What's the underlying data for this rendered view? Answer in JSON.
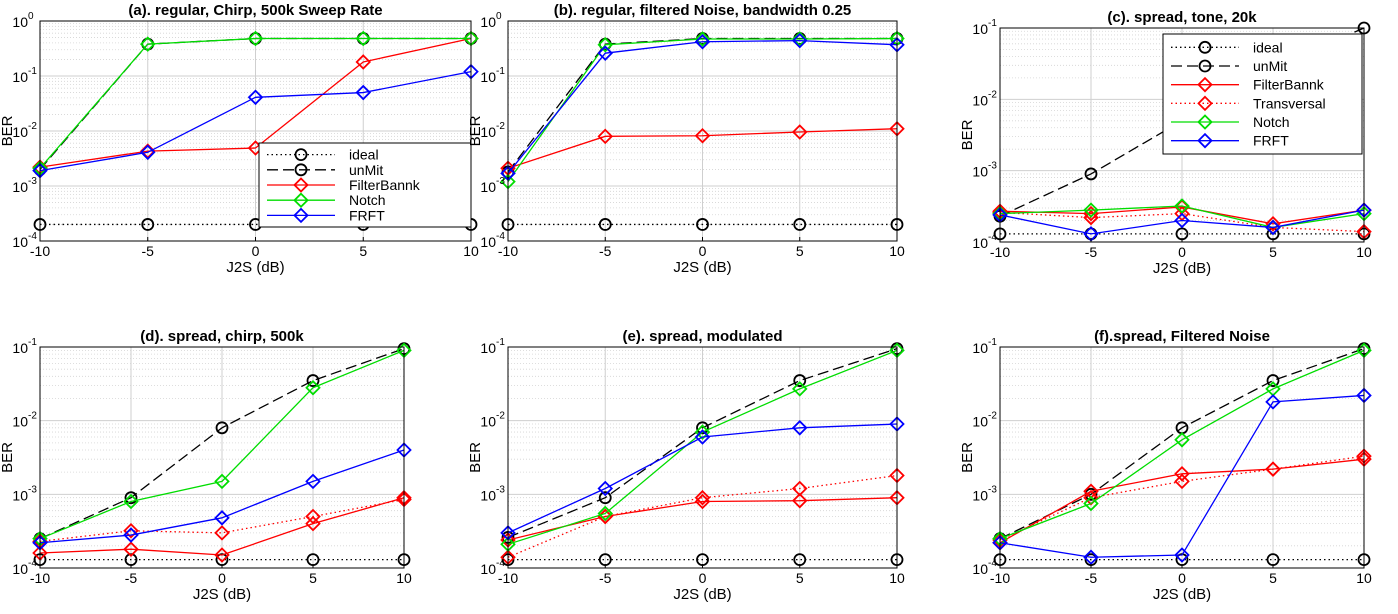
{
  "chart_data": [
    {
      "type": "line",
      "title": "(a). regular, Chirp, 500k Sweep Rate",
      "xlabel": "J2S (dB)",
      "ylabel": "BER",
      "yscale": "log",
      "x": [
        -10,
        -5,
        0,
        5,
        10
      ],
      "xlim": [
        -10,
        10
      ],
      "ylim": [
        0.0001,
        1
      ],
      "x_ticks": [
        "-10",
        "-5",
        "0",
        "5",
        "10"
      ],
      "y_ticks": [
        {
          "base": "10",
          "exp": "-4"
        },
        {
          "base": "10",
          "exp": "-3"
        },
        {
          "base": "10",
          "exp": "-2"
        },
        {
          "base": "10",
          "exp": "-1"
        },
        {
          "base": "10",
          "exp": "0"
        }
      ],
      "grid": true,
      "legend_position": "center-right",
      "series": [
        {
          "name": "ideal",
          "style": "ideal",
          "values": [
            0.0002,
            0.0002,
            0.0002,
            0.0002,
            0.0002
          ]
        },
        {
          "name": "unMit",
          "style": "unmit",
          "values": [
            0.002,
            0.38,
            0.48,
            0.48,
            0.48
          ]
        },
        {
          "name": "FilterBannk",
          "style": "filterbank",
          "values": [
            0.0022,
            0.0043,
            0.0049,
            0.18,
            0.48
          ]
        },
        {
          "name": "Notch",
          "style": "notch",
          "values": [
            0.0021,
            0.38,
            0.48,
            0.48,
            0.48
          ]
        },
        {
          "name": "FRFT",
          "style": "frft",
          "values": [
            0.0019,
            0.0041,
            0.041,
            0.05,
            0.12
          ]
        }
      ]
    },
    {
      "type": "line",
      "title": "(b). regular, filtered Noise, bandwidth 0.25",
      "xlabel": "J2S (dB)",
      "ylabel": "BER",
      "yscale": "log",
      "x": [
        -10,
        -5,
        0,
        5,
        10
      ],
      "xlim": [
        -10,
        10
      ],
      "ylim": [
        0.0001,
        1
      ],
      "x_ticks": [
        "-10",
        "-5",
        "0",
        "5",
        "10"
      ],
      "y_ticks": [
        {
          "base": "10",
          "exp": "-4"
        },
        {
          "base": "10",
          "exp": "-3"
        },
        {
          "base": "10",
          "exp": "-2"
        },
        {
          "base": "10",
          "exp": "-1"
        },
        {
          "base": "10",
          "exp": "0"
        }
      ],
      "grid": true,
      "series": [
        {
          "name": "ideal",
          "style": "ideal",
          "values": [
            0.0002,
            0.0002,
            0.0002,
            0.0002,
            0.0002
          ]
        },
        {
          "name": "unMit",
          "style": "unmit",
          "values": [
            0.0018,
            0.38,
            0.48,
            0.48,
            0.48
          ]
        },
        {
          "name": "FilterBannk",
          "style": "filterbank",
          "values": [
            0.0021,
            0.008,
            0.0082,
            0.0096,
            0.011
          ]
        },
        {
          "name": "Notch",
          "style": "notch",
          "values": [
            0.0012,
            0.37,
            0.47,
            0.47,
            0.48
          ]
        },
        {
          "name": "FRFT",
          "style": "frft",
          "values": [
            0.0017,
            0.26,
            0.42,
            0.44,
            0.37
          ]
        }
      ]
    },
    {
      "type": "line",
      "title": "(c). spread, tone, 20k",
      "xlabel": "J2S (dB)",
      "ylabel": "BER",
      "yscale": "log",
      "x": [
        -10,
        -5,
        0,
        5,
        10
      ],
      "xlim": [
        -10,
        10
      ],
      "ylim": [
        0.0001,
        0.1
      ],
      "x_ticks": [
        "-10",
        "-5",
        "0",
        "5",
        "10"
      ],
      "y_ticks": [
        {
          "base": "10",
          "exp": "-4"
        },
        {
          "base": "10",
          "exp": "-3"
        },
        {
          "base": "10",
          "exp": "-2"
        },
        {
          "base": "10",
          "exp": "-1"
        }
      ],
      "grid": true,
      "legend_position": "top-right",
      "series": [
        {
          "name": "ideal",
          "style": "ideal",
          "values": [
            0.00013,
            0.00013,
            0.00013,
            0.00013,
            0.00013
          ]
        },
        {
          "name": "unMit",
          "style": "unmit",
          "values": [
            0.00023,
            0.0009,
            0.005,
            0.028,
            0.1
          ]
        },
        {
          "name": "FilterBannk",
          "style": "filterbank",
          "values": [
            0.00027,
            0.00025,
            0.00031,
            0.00018,
            0.00028
          ]
        },
        {
          "name": "Transversal",
          "style": "transversal",
          "values": [
            0.00026,
            0.00022,
            0.00025,
            0.00016,
            0.00014
          ]
        },
        {
          "name": "Notch",
          "style": "notch",
          "values": [
            0.00025,
            0.00028,
            0.00032,
            0.00016,
            0.00025
          ]
        },
        {
          "name": "FRFT",
          "style": "frft",
          "values": [
            0.00024,
            0.00013,
            0.0002,
            0.00016,
            0.00028
          ]
        }
      ]
    },
    {
      "type": "line",
      "title": "(d). spread, chirp, 500k",
      "xlabel": "J2S (dB)",
      "ylabel": "BER",
      "yscale": "log",
      "x": [
        -10,
        -5,
        0,
        5,
        10
      ],
      "xlim": [
        -10,
        10
      ],
      "ylim": [
        0.0001,
        0.1
      ],
      "x_ticks": [
        "-10",
        "-5",
        "0",
        "5",
        "10"
      ],
      "y_ticks": [
        {
          "base": "10",
          "exp": "-4"
        },
        {
          "base": "10",
          "exp": "-3"
        },
        {
          "base": "10",
          "exp": "-2"
        },
        {
          "base": "10",
          "exp": "-1"
        }
      ],
      "grid": true,
      "series": [
        {
          "name": "ideal",
          "style": "ideal",
          "values": [
            0.00013,
            0.00013,
            0.00013,
            0.00013,
            0.00013
          ]
        },
        {
          "name": "unMit",
          "style": "unmit",
          "values": [
            0.00025,
            0.0009,
            0.008,
            0.035,
            0.095
          ]
        },
        {
          "name": "FilterBannk",
          "style": "filterbank",
          "values": [
            0.00016,
            0.00018,
            0.00015,
            0.0004,
            0.0009
          ]
        },
        {
          "name": "Transversal",
          "style": "transversal",
          "values": [
            0.00023,
            0.00032,
            0.0003,
            0.0005,
            0.00085
          ]
        },
        {
          "name": "Notch",
          "style": "notch",
          "values": [
            0.00025,
            0.0008,
            0.0015,
            0.028,
            0.09
          ]
        },
        {
          "name": "FRFT",
          "style": "frft",
          "values": [
            0.00022,
            0.00028,
            0.00048,
            0.0015,
            0.004
          ]
        }
      ]
    },
    {
      "type": "line",
      "title": "(e). spread, modulated",
      "xlabel": "J2S (dB)",
      "ylabel": "BER",
      "yscale": "log",
      "x": [
        -10,
        -5,
        0,
        5,
        10
      ],
      "xlim": [
        -10,
        10
      ],
      "ylim": [
        0.0001,
        0.1
      ],
      "x_ticks": [
        "-10",
        "-5",
        "0",
        "5",
        "10"
      ],
      "y_ticks": [
        {
          "base": "10",
          "exp": "-4"
        },
        {
          "base": "10",
          "exp": "-3"
        },
        {
          "base": "10",
          "exp": "-2"
        },
        {
          "base": "10",
          "exp": "-1"
        }
      ],
      "grid": true,
      "series": [
        {
          "name": "ideal",
          "style": "ideal",
          "values": [
            0.00013,
            0.00013,
            0.00013,
            0.00013,
            0.00013
          ]
        },
        {
          "name": "unMit",
          "style": "unmit",
          "values": [
            0.00026,
            0.0009,
            0.008,
            0.035,
            0.095
          ]
        },
        {
          "name": "FilterBannk",
          "style": "filterbank",
          "values": [
            0.00024,
            0.0005,
            0.0008,
            0.00082,
            0.0009
          ]
        },
        {
          "name": "Transversal",
          "style": "transversal",
          "values": [
            0.00014,
            0.0005,
            0.0009,
            0.0012,
            0.0018
          ]
        },
        {
          "name": "Notch",
          "style": "notch",
          "values": [
            0.00021,
            0.00055,
            0.007,
            0.027,
            0.09
          ]
        },
        {
          "name": "FRFT",
          "style": "frft",
          "values": [
            0.0003,
            0.0012,
            0.006,
            0.008,
            0.009
          ]
        }
      ]
    },
    {
      "type": "line",
      "title": "(f).spread, Filtered Noise",
      "xlabel": "J2S (dB)",
      "ylabel": "BER",
      "yscale": "log",
      "x": [
        -10,
        -5,
        0,
        5,
        10
      ],
      "xlim": [
        -10,
        10
      ],
      "ylim": [
        0.0001,
        0.1
      ],
      "x_ticks": [
        "-10",
        "-5",
        "0",
        "5",
        "10"
      ],
      "y_ticks": [
        {
          "base": "10",
          "exp": "-4"
        },
        {
          "base": "10",
          "exp": "-3"
        },
        {
          "base": "10",
          "exp": "-2"
        },
        {
          "base": "10",
          "exp": "-1"
        }
      ],
      "grid": true,
      "series": [
        {
          "name": "ideal",
          "style": "ideal",
          "values": [
            0.00013,
            0.00013,
            0.00013,
            0.00013,
            0.00013
          ]
        },
        {
          "name": "unMit",
          "style": "unmit",
          "values": [
            0.00025,
            0.001,
            0.008,
            0.035,
            0.095
          ]
        },
        {
          "name": "FilterBannk",
          "style": "filterbank",
          "values": [
            0.00022,
            0.0011,
            0.0019,
            0.0022,
            0.003
          ]
        },
        {
          "name": "Transversal",
          "style": "transversal",
          "values": [
            0.00024,
            0.0009,
            0.0015,
            0.0022,
            0.0033
          ]
        },
        {
          "name": "Notch",
          "style": "notch",
          "values": [
            0.00025,
            0.00075,
            0.0055,
            0.027,
            0.09
          ]
        },
        {
          "name": "FRFT",
          "style": "frft",
          "values": [
            0.00022,
            0.00014,
            0.00015,
            0.018,
            0.022
          ]
        }
      ]
    }
  ],
  "styles": {
    "ideal": {
      "color": "#000000",
      "dash": "1.5,3",
      "marker": "circle"
    },
    "unmit": {
      "color": "#000000",
      "dash": "11,5",
      "marker": "circle"
    },
    "filterbank": {
      "color": "#ff0000",
      "dash": "",
      "marker": "diamond"
    },
    "transversal": {
      "color": "#ff0000",
      "dash": "1.5,3",
      "marker": "diamond"
    },
    "notch": {
      "color": "#00dd00",
      "dash": "",
      "marker": "diamond"
    },
    "frft": {
      "color": "#0000ff",
      "dash": "",
      "marker": "diamond"
    }
  }
}
